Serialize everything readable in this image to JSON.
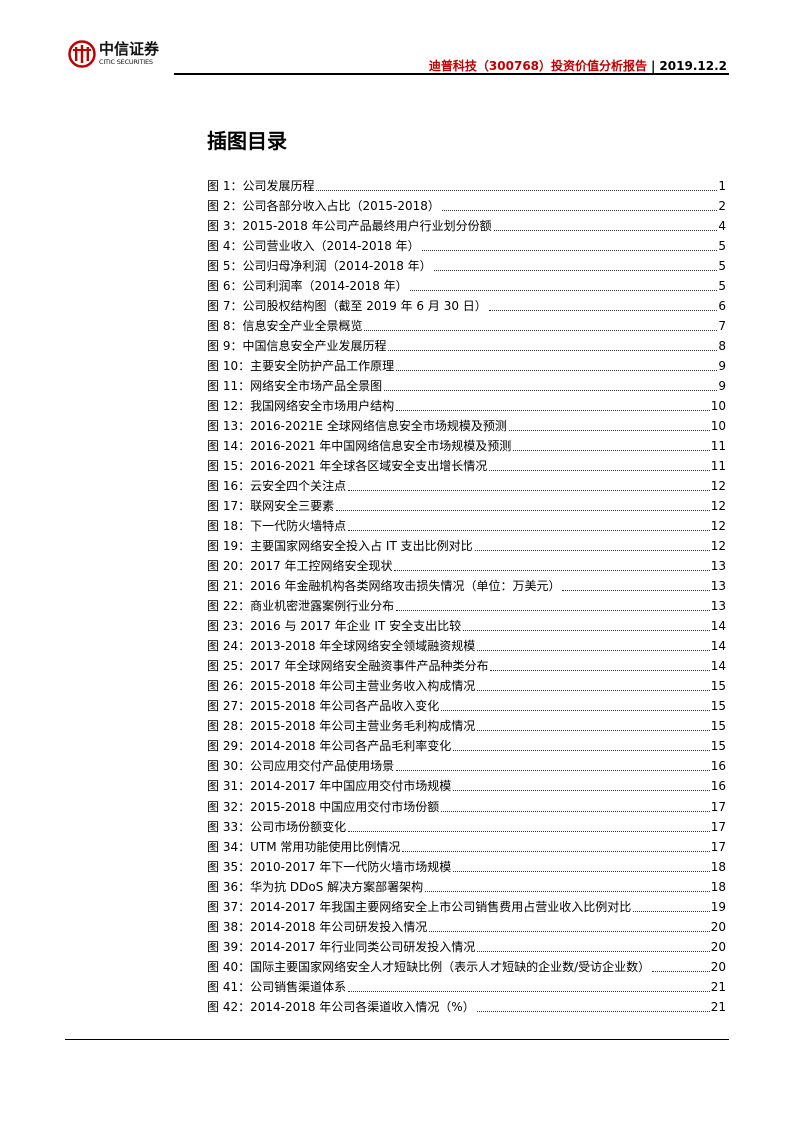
{
  "header": {
    "logo": {
      "cn": "中信证券",
      "en": "CITIC SECURITIES",
      "color": "#c00000"
    },
    "report_title": "迪普科技（300768）投资价值分析报告",
    "separator": "|",
    "date": "2019.12.2"
  },
  "page_title": "插图目录",
  "toc": [
    {
      "label": "图 1：公司发展历程",
      "page": "1"
    },
    {
      "label": "图 2：公司各部分收入占比（2015-2018）",
      "page": "2"
    },
    {
      "label": "图 3：2015-2018 年公司产品最终用户行业划分份额",
      "page": "4"
    },
    {
      "label": "图 4：公司营业收入（2014-2018 年）",
      "page": "5"
    },
    {
      "label": "图 5：公司归母净利润（2014-2018 年）",
      "page": "5"
    },
    {
      "label": "图 6：公司利润率（2014-2018 年）",
      "page": "5"
    },
    {
      "label": "图 7：公司股权结构图（截至 2019 年 6 月 30 日）",
      "page": "6"
    },
    {
      "label": "图 8：信息安全产业全景概览",
      "page": "7"
    },
    {
      "label": "图 9：中国信息安全产业发展历程",
      "page": "8"
    },
    {
      "label": "图 10：主要安全防护产品工作原理",
      "page": "9"
    },
    {
      "label": "图 11：网络安全市场产品全景图",
      "page": "9"
    },
    {
      "label": "图 12：我国网络安全市场用户结构",
      "page": "10"
    },
    {
      "label": "图 13：2016-2021E 全球网络信息安全市场规模及预测",
      "page": "10"
    },
    {
      "label": "图 14：2016-2021 年中国网络信息安全市场规模及预测",
      "page": "11"
    },
    {
      "label": "图 15：2016-2021 年全球各区域安全支出增长情况",
      "page": "11"
    },
    {
      "label": "图 16：云安全四个关注点",
      "page": "12"
    },
    {
      "label": "图 17：联网安全三要素",
      "page": "12"
    },
    {
      "label": "图 18：下一代防火墙特点",
      "page": "12"
    },
    {
      "label": "图 19：主要国家网络安全投入占 IT 支出比例对比",
      "page": "12"
    },
    {
      "label": "图 20：2017 年工控网络安全现状",
      "page": "13"
    },
    {
      "label": "图 21：2016 年金融机构各类网络攻击损失情况（单位：万美元）",
      "page": "13"
    },
    {
      "label": "图 22：商业机密泄露案例行业分布",
      "page": "13"
    },
    {
      "label": "图 23：2016 与 2017 年企业 IT 安全支出比较",
      "page": "14"
    },
    {
      "label": "图 24：2013-2018 年全球网络安全领域融资规模",
      "page": "14"
    },
    {
      "label": "图 25：2017 年全球网络安全融资事件产品种类分布",
      "page": "14"
    },
    {
      "label": "图 26：2015-2018 年公司主营业务收入构成情况",
      "page": "15"
    },
    {
      "label": "图 27：2015-2018 年公司各产品收入变化",
      "page": "15"
    },
    {
      "label": "图 28：2015-2018 年公司主营业务毛利构成情况",
      "page": "15"
    },
    {
      "label": "图 29：2014-2018 年公司各产品毛利率变化",
      "page": "15"
    },
    {
      "label": "图 30：公司应用交付产品使用场景",
      "page": "16"
    },
    {
      "label": "图 31：2014-2017 年中国应用交付市场规模",
      "page": "16"
    },
    {
      "label": "图 32：2015-2018 中国应用交付市场份额",
      "page": "17"
    },
    {
      "label": "图 33：公司市场份额变化",
      "page": "17"
    },
    {
      "label": "图 34：UTM 常用功能使用比例情况",
      "page": "17"
    },
    {
      "label": "图 35：2010-2017 年下一代防火墙市场规模",
      "page": "18"
    },
    {
      "label": "图 36：华为抗 DDoS 解决方案部署架构",
      "page": "18"
    },
    {
      "label": "图 37：2014-2017 年我国主要网络安全上市公司销售费用占营业收入比例对比",
      "page": "19"
    },
    {
      "label": "图 38：2014-2018 年公司研发投入情况",
      "page": "20"
    },
    {
      "label": "图 39：2014-2017 年行业同类公司研发投入情况",
      "page": "20"
    },
    {
      "label": "图 40：国际主要国家网络安全人才短缺比例（表示人才短缺的企业数/受访企业数）",
      "page": "20"
    },
    {
      "label": "图 41：公司销售渠道体系",
      "page": "21"
    },
    {
      "label": "图 42：2014-2018 年公司各渠道收入情况（%）",
      "page": "21"
    }
  ]
}
